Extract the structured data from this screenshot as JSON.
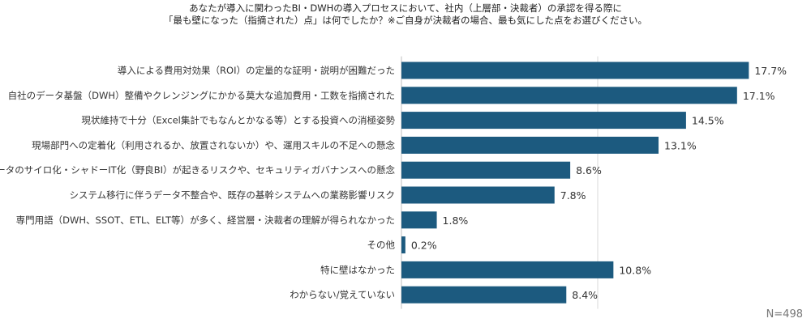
{
  "title_lines": [
    "あなたが導入に関わったBI・DWHの導入プロセスにおいて、社内（上層部・決裁者）の承認を得る際に",
    "「最も壁になった（指摘された）点」は何でしたか？※ご自身が決裁者の場合、最も気にした点をお選びください。"
  ],
  "sample_label": "N=498",
  "chart_data": {
    "type": "bar",
    "orientation": "horizontal",
    "title": "あなたが導入に関わったBI・DWHの導入プロセスにおいて、社内（上層部・決裁者）の承認を得る際に「最も壁になった（指摘された）点」は何でしたか？※ご自身が決裁者の場合、最も気にした点をお選びください。",
    "categories": [
      "導入による費用対効果（ROI）の定量的な証明・説明が困難だった",
      "自社のデータ基盤（DWH）整備やクレンジングにかかる莫大な追加費用・工数を指摘された",
      "現状維持で十分（Excel集計でもなんとかなる等）とする投資への消極姿勢",
      "現場部門への定着化（利用されるか、放置されないか）や、運用スキルの不足への懸念",
      "データのサイロ化・シャドーIT化（野良BI）が起きるリスクや、セキュリティガバナンスへの懸念",
      "システム移行に伴うデータ不整合や、既存の基幹システムへの業務影響リスク",
      "専門用語（DWH、SSOT、ETL、ELT等）が多く、経営層・決裁者の理解が得られなかった",
      "その他",
      "特に壁はなかった",
      "わからない/覚えていない"
    ],
    "values": [
      17.7,
      17.1,
      14.5,
      13.1,
      8.6,
      7.8,
      1.8,
      0.2,
      10.8,
      8.4
    ],
    "value_labels": [
      "17.7%",
      "17.1%",
      "14.5%",
      "13.1%",
      "8.6%",
      "7.8%",
      "1.8%",
      "0.2%",
      "10.8%",
      "8.4%"
    ],
    "unit": "%",
    "xlim": [
      0,
      18
    ],
    "gridlines": [
      0,
      10
    ],
    "grid": true,
    "legend": "none",
    "bar_color": "#1c5a7f",
    "grid_color": "#d9d9d9"
  }
}
